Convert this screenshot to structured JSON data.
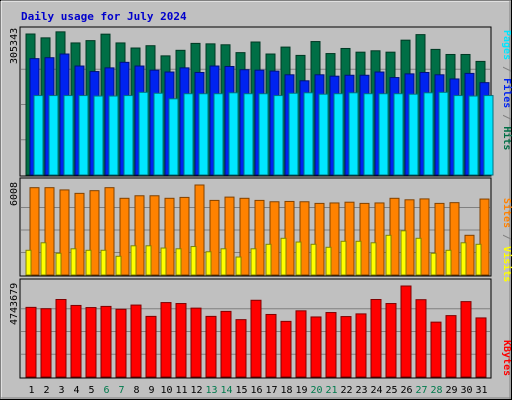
{
  "chart_data": {
    "type": "bar",
    "title": "Daily usage for July 2024",
    "categories": [
      "1",
      "2",
      "3",
      "4",
      "5",
      "6",
      "7",
      "8",
      "9",
      "10",
      "11",
      "12",
      "13",
      "14",
      "15",
      "16",
      "17",
      "18",
      "19",
      "20",
      "21",
      "22",
      "23",
      "24",
      "25",
      "26",
      "27",
      "28",
      "29",
      "30",
      "31"
    ],
    "weekend_categories": [
      "6",
      "7",
      "13",
      "14",
      "20",
      "21",
      "27",
      "28"
    ],
    "colors": {
      "hits": "#006f46",
      "files": "#0023f0",
      "pages": "#00e6ff",
      "visits": "#ffff00",
      "sites": "#ff8200",
      "kbytes": "#ff0000",
      "title": "#0000cc",
      "weekday_label": "#000000",
      "weekend_label": "#007a4c",
      "background": "#c0c0c0",
      "frame": "#808080"
    },
    "panels": [
      {
        "id": "top",
        "max_label": "305343",
        "ymax": 305343,
        "right_labels": [
          {
            "text": "Pages",
            "color": "#00e6ff"
          },
          {
            "text": " / ",
            "color": "#808080"
          },
          {
            "text": "Files",
            "color": "#0023f0"
          },
          {
            "text": " / ",
            "color": "#808080"
          },
          {
            "text": "Hits",
            "color": "#006f46"
          }
        ],
        "series": [
          {
            "name": "Hits",
            "color": "#006f46",
            "values": [
              305343,
              297000,
              310000,
              286000,
              291000,
              305000,
              286000,
              275000,
              280000,
              258000,
              270000,
              285000,
              284000,
              282000,
              265000,
              288000,
              262000,
              277000,
              259000,
              289000,
              263000,
              274000,
              266000,
              269000,
              266000,
              292000,
              304000,
              272000,
              261000,
              261000,
              246000
            ]
          },
          {
            "name": "Files",
            "color": "#0023f0",
            "values": [
              252000,
              254000,
              262000,
              236000,
              224000,
              232000,
              244000,
              236000,
              227000,
              223000,
              232000,
              222000,
              236000,
              235000,
              228000,
              227000,
              225000,
              217000,
              204000,
              217000,
              214000,
              216000,
              216000,
              223000,
              211000,
              219000,
              222000,
              217000,
              208000,
              220000,
              200000
            ]
          },
          {
            "name": "Pages",
            "color": "#00e6ff",
            "values": [
              172000,
              172000,
              172000,
              172000,
              171000,
              171000,
              172000,
              179000,
              177000,
              165000,
              176000,
              176000,
              176000,
              178000,
              176000,
              176000,
              172000,
              177000,
              178000,
              175000,
              176000,
              178000,
              176000,
              176000,
              176000,
              175000,
              178000,
              179000,
              172000,
              171000,
              172000
            ]
          }
        ]
      },
      {
        "id": "middle",
        "max_label": "6008",
        "ymax": 6008,
        "right_labels": [
          {
            "text": "Sites",
            "color": "#ff8200"
          },
          {
            "text": " / ",
            "color": "#808080"
          },
          {
            "text": "Visits",
            "color": "#ffff00"
          }
        ],
        "series": [
          {
            "name": "Sites",
            "color": "#ff8200",
            "values": [
              5830,
              5830,
              5680,
              5450,
              5630,
              5830,
              5120,
              5290,
              5290,
              5120,
              5180,
              6008,
              4980,
              5200,
              5120,
              4980,
              4890,
              4910,
              4890,
              4780,
              4810,
              4860,
              4780,
              4810,
              5120,
              5020,
              5080,
              4780,
              4830,
              2650,
              5070
            ]
          },
          {
            "name": "Visits",
            "color": "#ffff00",
            "values": [
              1650,
              2150,
              1450,
              1750,
              1650,
              1650,
              1250,
              1950,
              1950,
              1800,
              1750,
              1900,
              1550,
              1750,
              1200,
              1750,
              2050,
              2450,
              2200,
              2050,
              1850,
              2250,
              2250,
              2150,
              2650,
              2950,
              2450,
              1450,
              1650,
              2150,
              2050
            ]
          }
        ]
      },
      {
        "id": "bottom",
        "max_label": "4743679",
        "ymax": 4743679,
        "right_labels": [
          {
            "text": "KBytes",
            "color": "#ff0000"
          }
        ],
        "series": [
          {
            "name": "KBytes",
            "color": "#ff0000",
            "values": [
              3630000,
              3560000,
              4040000,
              3730000,
              3620000,
              3680000,
              3530000,
              3750000,
              3160000,
              3880000,
              3830000,
              3590000,
              3160000,
              3420000,
              2990000,
              4000000,
              3260000,
              2900000,
              3450000,
              3130000,
              3360000,
              3150000,
              3290000,
              4040000,
              3830000,
              4743679,
              4030000,
              2860000,
              3200000,
              3930000,
              3080000
            ]
          }
        ]
      }
    ]
  }
}
